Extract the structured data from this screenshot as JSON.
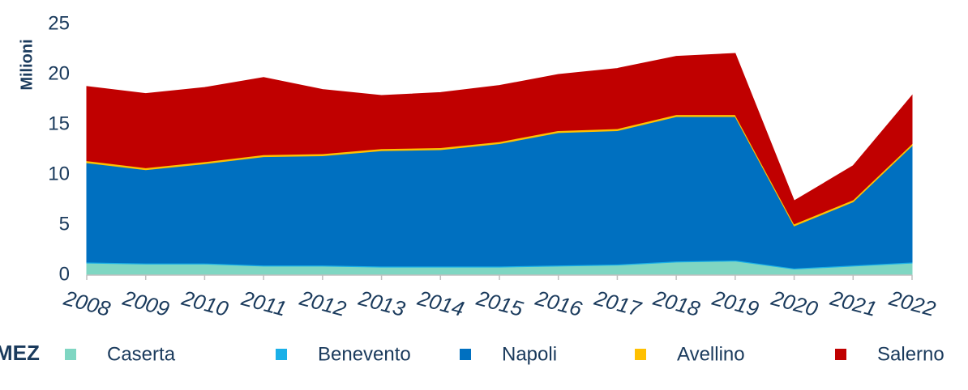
{
  "chart_data": {
    "type": "stacked_area",
    "y_label": "Milioni",
    "logo": "MEZ",
    "categories": [
      "2008",
      "2009",
      "2010",
      "2011",
      "2012",
      "2013",
      "2014",
      "2015",
      "2016",
      "2017",
      "2018",
      "2019",
      "2020",
      "2021",
      "2022"
    ],
    "series": [
      {
        "name": "Caserta",
        "color": "#7fd6c2",
        "values": [
          1.2,
          1.1,
          1.1,
          0.9,
          0.9,
          0.8,
          0.8,
          0.8,
          0.9,
          1.0,
          1.3,
          1.4,
          0.6,
          0.9,
          1.2
        ]
      },
      {
        "name": "Benevento",
        "color": "#1ab0e8",
        "values": [
          0.1,
          0.1,
          0.1,
          0.1,
          0.1,
          0.1,
          0.1,
          0.1,
          0.1,
          0.1,
          0.1,
          0.1,
          0.1,
          0.1,
          0.1
        ]
      },
      {
        "name": "Napoli",
        "color": "#0070c0",
        "values": [
          9.9,
          9.3,
          9.9,
          10.8,
          10.9,
          11.5,
          11.6,
          12.2,
          13.2,
          13.3,
          14.4,
          14.3,
          4.2,
          6.3,
          11.6
        ]
      },
      {
        "name": "Avellino",
        "color": "#ffc000",
        "values": [
          0.2,
          0.2,
          0.2,
          0.2,
          0.2,
          0.2,
          0.2,
          0.2,
          0.2,
          0.2,
          0.2,
          0.2,
          0.2,
          0.2,
          0.2
        ]
      },
      {
        "name": "Salerno",
        "color": "#c00000",
        "values": [
          7.4,
          7.4,
          7.4,
          7.7,
          6.4,
          5.3,
          5.5,
          5.6,
          5.6,
          6.0,
          5.8,
          6.1,
          2.3,
          3.4,
          4.8
        ]
      }
    ],
    "ylim": [
      0,
      25
    ],
    "yticks": [
      0,
      5,
      10,
      15,
      20,
      25
    ],
    "grid": false
  }
}
